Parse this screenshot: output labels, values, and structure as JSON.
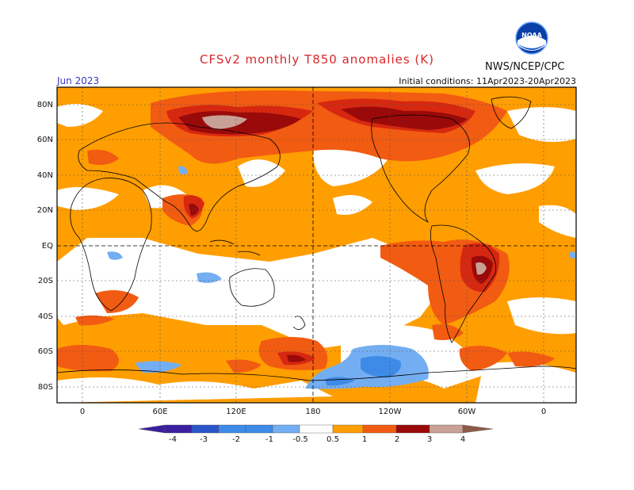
{
  "header": {
    "title": "CFSv2 monthly T850 anomalies (K)",
    "agency": "NWS/NCEP/CPC",
    "month": "Jun 2023",
    "initial_conditions": "Initial conditions: 11Apr2023-20Apr2023",
    "logo_text": "NOAA"
  },
  "map": {
    "lat_labels": [
      "80N",
      "60N",
      "40N",
      "20N",
      "EQ",
      "20S",
      "40S",
      "60S",
      "80S"
    ],
    "lon_labels": [
      "0",
      "60E",
      "120E",
      "180",
      "120W",
      "60W",
      "0"
    ]
  },
  "colorbar": {
    "ticks": [
      "-4",
      "-3",
      "-2",
      "-1",
      "-0.5",
      "0.5",
      "1",
      "2",
      "3",
      "4"
    ],
    "colors": [
      "#3b1f9e",
      "#2a55c8",
      "#3d8be6",
      "#74aef2",
      "#ffffff",
      "#ff9e00",
      "#f25b12",
      "#d62810",
      "#9a0a0a",
      "#c8a096",
      "#8e5a48"
    ]
  }
}
